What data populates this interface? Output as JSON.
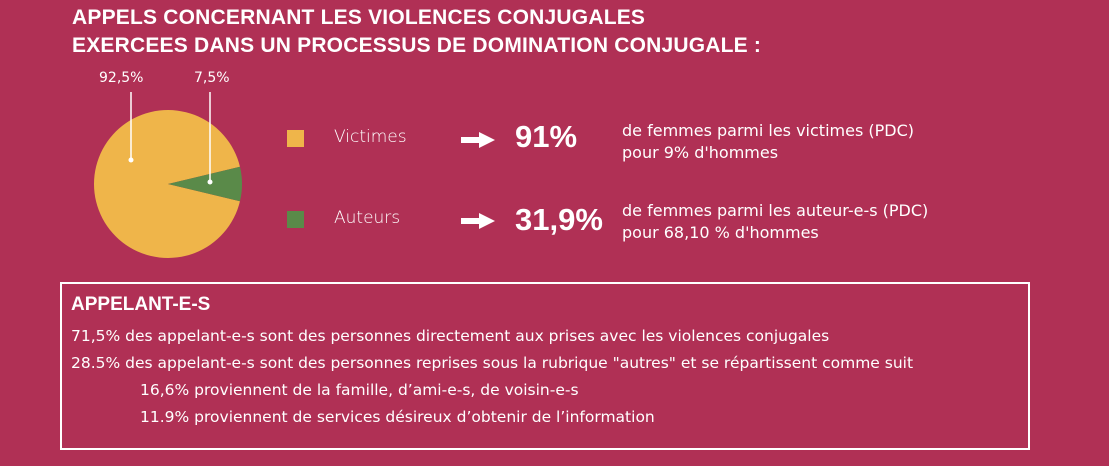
{
  "title": {
    "line1": "APPELS CONCERNANT LES VIOLENCES CONJUGALES",
    "line2": "EXERCEES DANS UN PROCESSUS DE DOMINATION CONJUGALE :"
  },
  "colors": {
    "background": "#b03055",
    "victimes": "#efb54a",
    "auteurs": "#5a8a49",
    "text": "#ffffff"
  },
  "chart_data": {
    "type": "pie",
    "title": "",
    "slices": [
      {
        "label": "92,5%",
        "value": 92.5,
        "color": "#efb54a"
      },
      {
        "label": "7,5%",
        "value": 7.5,
        "color": "#5a8a49"
      }
    ]
  },
  "legend": [
    {
      "label": "Victimes",
      "color": "#efb54a",
      "stat": "91%",
      "desc1": "de femmes parmi les victimes (PDC)",
      "desc2": "pour 9% d'hommes"
    },
    {
      "label": "Auteurs",
      "color": "#5a8a49",
      "stat": "31,9%",
      "desc1": "de femmes parmi les auteur-e-s (PDC)",
      "desc2": "pour 68,10 % d'hommes"
    }
  ],
  "box": {
    "title": "APPELANT-E-S",
    "line1": "71,5% des appelant-e-s sont des personnes directement aux prises avec les violences conjugales",
    "line2": "28.5% des appelant-e-s sont des personnes reprises sous la rubrique \"autres\" et se répartissent comme suit",
    "sub1": "16,6%  proviennent de la famille, d’ami-e-s, de voisin-e-s",
    "sub2": "11.9%  proviennent de services désireux d’obtenir de l’information"
  }
}
